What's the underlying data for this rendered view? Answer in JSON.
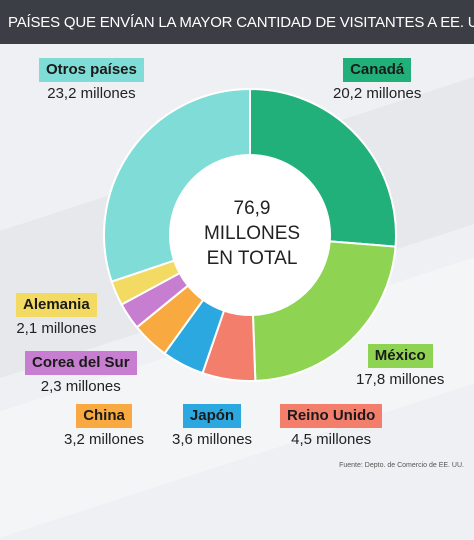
{
  "header": {
    "title": "PAÍSES QUE ENVÍAN LA MAYOR CANTIDAD DE VISITANTES A EE. UU."
  },
  "center": {
    "line1": "76,9",
    "line2": "MILLONES",
    "line3": "EN TOTAL"
  },
  "source": "Fuente: Depto. de Comercio de EE. UU.",
  "chart_data": {
    "type": "pie",
    "title": "PAÍSES QUE ENVÍAN LA MAYOR CANTIDAD DE VISITANTES A EE. UU.",
    "unit": "millones",
    "total": 76.9,
    "slices": [
      {
        "name": "Canadá",
        "value": 20.2,
        "value_label": "20,2 millones",
        "color": "#22b07a"
      },
      {
        "name": "México",
        "value": 17.8,
        "value_label": "17,8 millones",
        "color": "#8ed352"
      },
      {
        "name": "Reino Unido",
        "value": 4.5,
        "value_label": "4,5 millones",
        "color": "#f47e6c"
      },
      {
        "name": "Japón",
        "value": 3.6,
        "value_label": "3,6 millones",
        "color": "#2ba8e0"
      },
      {
        "name": "China",
        "value": 3.2,
        "value_label": "3,2 millones",
        "color": "#f8a93f"
      },
      {
        "name": "Corea del Sur",
        "value": 2.3,
        "value_label": "2,3 millones",
        "color": "#c77dd0"
      },
      {
        "name": "Alemania",
        "value": 2.1,
        "value_label": "2,1 millones",
        "color": "#f3da62"
      },
      {
        "name": "Otros países",
        "value": 23.2,
        "value_label": "23,2 millones",
        "color": "#7fdcd6"
      }
    ]
  }
}
